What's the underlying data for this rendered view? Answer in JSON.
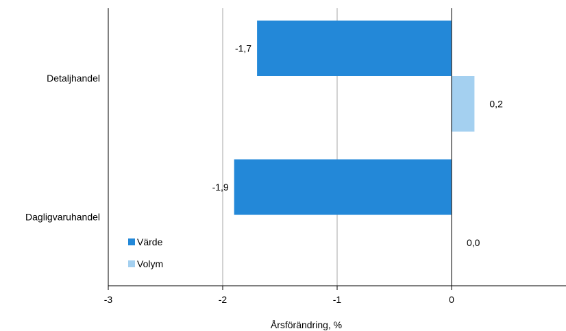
{
  "chart_data": {
    "type": "bar",
    "orientation": "horizontal",
    "categories": [
      "Detaljhandel",
      "Dagligvaruhandel"
    ],
    "series": [
      {
        "name": "Värde",
        "values": [
          -1.7,
          -1.9
        ],
        "labels": [
          "-1,7",
          "-1,9"
        ],
        "color": "#2388d8"
      },
      {
        "name": "Volym",
        "values": [
          0.2,
          0.0
        ],
        "labels": [
          "0,2",
          "0,0"
        ],
        "color": "#a4d0f0"
      }
    ],
    "xlabel": "Årsförändring, %",
    "ylabel": "",
    "xlim": [
      -3,
      1
    ],
    "xticks": [
      -3,
      -2,
      -1,
      0
    ],
    "xtick_labels": [
      "-3",
      "-2",
      "-1",
      "0"
    ],
    "grid": "vertical",
    "legend_position": "bottom-left"
  }
}
